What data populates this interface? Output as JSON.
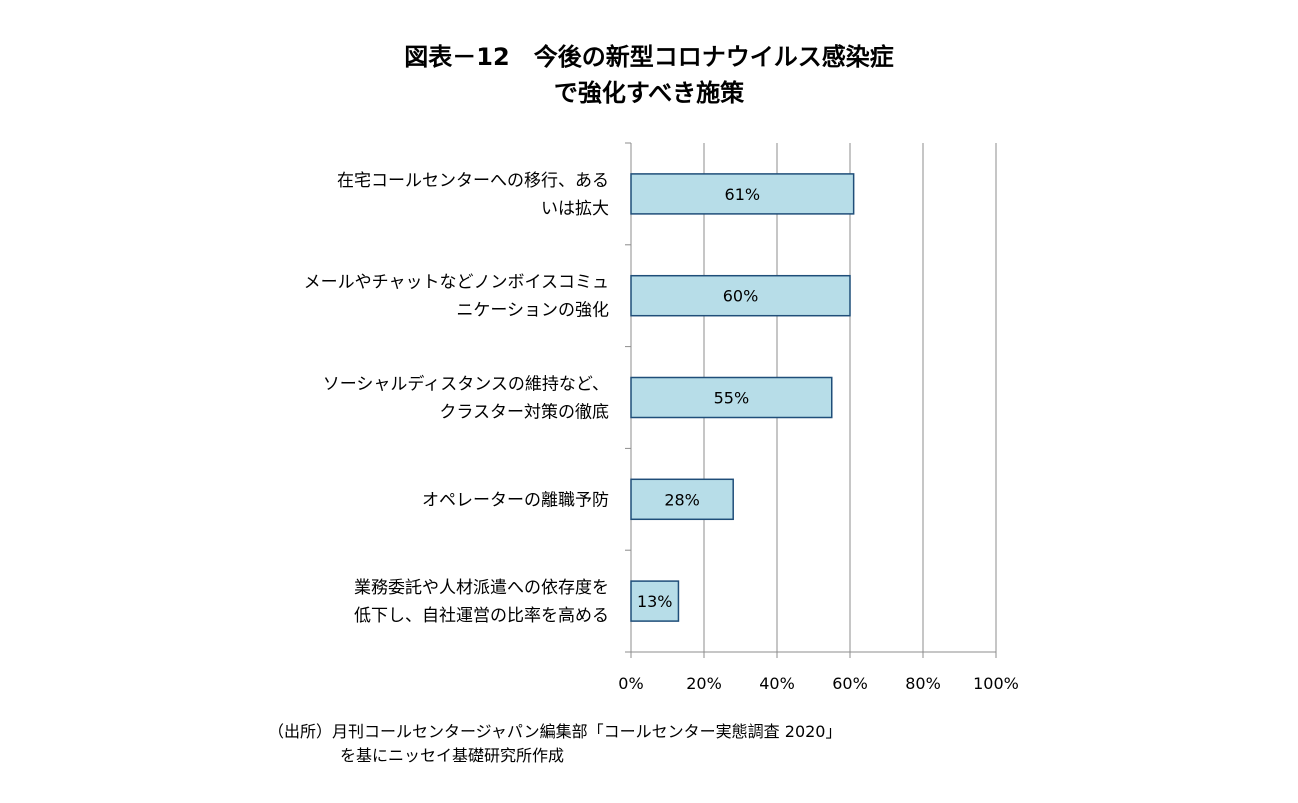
{
  "title": {
    "line1": "図表－12　今後の新型コロナウイルス感染症",
    "line2": "で強化すべき施策"
  },
  "chart_data": {
    "type": "bar",
    "orientation": "horizontal",
    "categories": [
      [
        "在宅コールセンターへの移行、ある",
        "いは拡大"
      ],
      [
        "メールやチャットなどノンボイスコミュ",
        "ニケーションの強化"
      ],
      [
        "ソーシャルディスタンスの維持など、",
        "クラスター対策の徹底"
      ],
      [
        "オペレーターの離職予防"
      ],
      [
        "業務委託や人材派遣への依存度を",
        "低下し、自社運営の比率を高める"
      ]
    ],
    "values": [
      61,
      60,
      55,
      28,
      13
    ],
    "data_labels": [
      "61%",
      "60%",
      "55%",
      "28%",
      "13%"
    ],
    "xlim": [
      0,
      100
    ],
    "x_ticks": [
      0,
      20,
      40,
      60,
      80,
      100
    ],
    "x_tick_labels": [
      "0%",
      "20%",
      "40%",
      "60%",
      "80%",
      "100%"
    ],
    "grid": true,
    "colors": {
      "bar_fill": "#b7dde8",
      "bar_stroke": "#1f4e79",
      "grid": "#8c8c8c",
      "axis": "#8c8c8c"
    }
  },
  "source": {
    "line1": "（出所）月刊コールセンタージャパン編集部「コールセンター実態調査 2020」",
    "line2": "を基にニッセイ基礎研究所作成"
  }
}
